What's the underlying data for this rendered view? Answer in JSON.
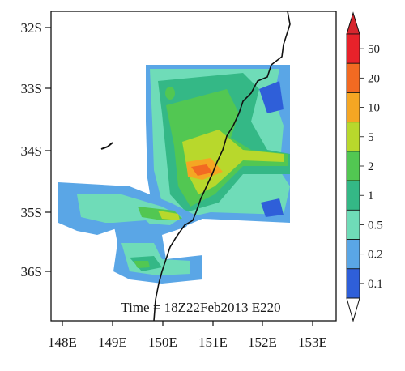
{
  "map": {
    "annotation": "Time = 18Z22Feb2013 E220",
    "lat_labels": [
      "32S",
      "33S",
      "34S",
      "35S",
      "36S"
    ],
    "lon_labels": [
      "148E",
      "149E",
      "150E",
      "151E",
      "152E",
      "153E"
    ],
    "lon_range": [
      148,
      153.5
    ],
    "lat_range": [
      -36.8,
      -31.9
    ]
  },
  "colorbar": {
    "labels": [
      "50",
      "20",
      "10",
      "5",
      "2",
      "1",
      "0.5",
      "0.2",
      "0.1"
    ],
    "colors": [
      "#e8222a",
      "#f26a22",
      "#f5a623",
      "#b8d82c",
      "#52c752",
      "#34b886",
      "#6fdcb8",
      "#5aa6e6",
      "#2f5fd9"
    ]
  }
}
